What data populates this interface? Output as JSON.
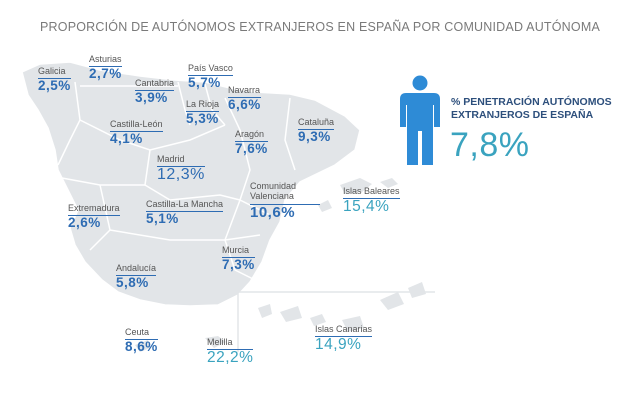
{
  "chart_data": {
    "type": "map",
    "title": "PROPORCIÓN DE AUTÓNOMOS EXTRANJEROS EN ESPAÑA POR COMUNIDAD AUTÓNOMA",
    "unit": "%",
    "regions": [
      {
        "name": "Galicia",
        "value": "2,5%"
      },
      {
        "name": "Asturias",
        "value": "2,7%"
      },
      {
        "name": "Cantabria",
        "value": "3,9%"
      },
      {
        "name": "País Vasco",
        "value": "5,7%"
      },
      {
        "name": "Navarra",
        "value": "6,6%"
      },
      {
        "name": "La Rioja",
        "value": "5,3%"
      },
      {
        "name": "Castilla-León",
        "value": "4,1%"
      },
      {
        "name": "Aragón",
        "value": "7,6%"
      },
      {
        "name": "Cataluña",
        "value": "9,3%"
      },
      {
        "name": "Madrid",
        "value": "12,3%"
      },
      {
        "name": "Extremadura",
        "value": "2,6%"
      },
      {
        "name": "Castilla-La Mancha",
        "value": "5,1%"
      },
      {
        "name": "Comunidad Valenciana",
        "value": "10,6%"
      },
      {
        "name": "Islas Baleares",
        "value": "15,4%"
      },
      {
        "name": "Murcia",
        "value": "7,3%"
      },
      {
        "name": "Andalucía",
        "value": "5,8%"
      },
      {
        "name": "Ceuta",
        "value": "8,6%"
      },
      {
        "name": "Melilla",
        "value": "22,2%"
      },
      {
        "name": "Islas Canarias",
        "value": "14,9%"
      }
    ],
    "national": {
      "label_line1": "% PENETRACIÓN AUTÓNOMOS",
      "label_line2": "EXTRANJEROS DE ESPAÑA",
      "value": "7,8%"
    }
  },
  "colors": {
    "map_fill": "#e2e5e8",
    "border": "#ffffff",
    "value_blue": "#2e6cb3",
    "value_teal": "#3aa3bf",
    "icon_blue": "#2e8bd6",
    "label_dark": "#2d4f7c"
  }
}
